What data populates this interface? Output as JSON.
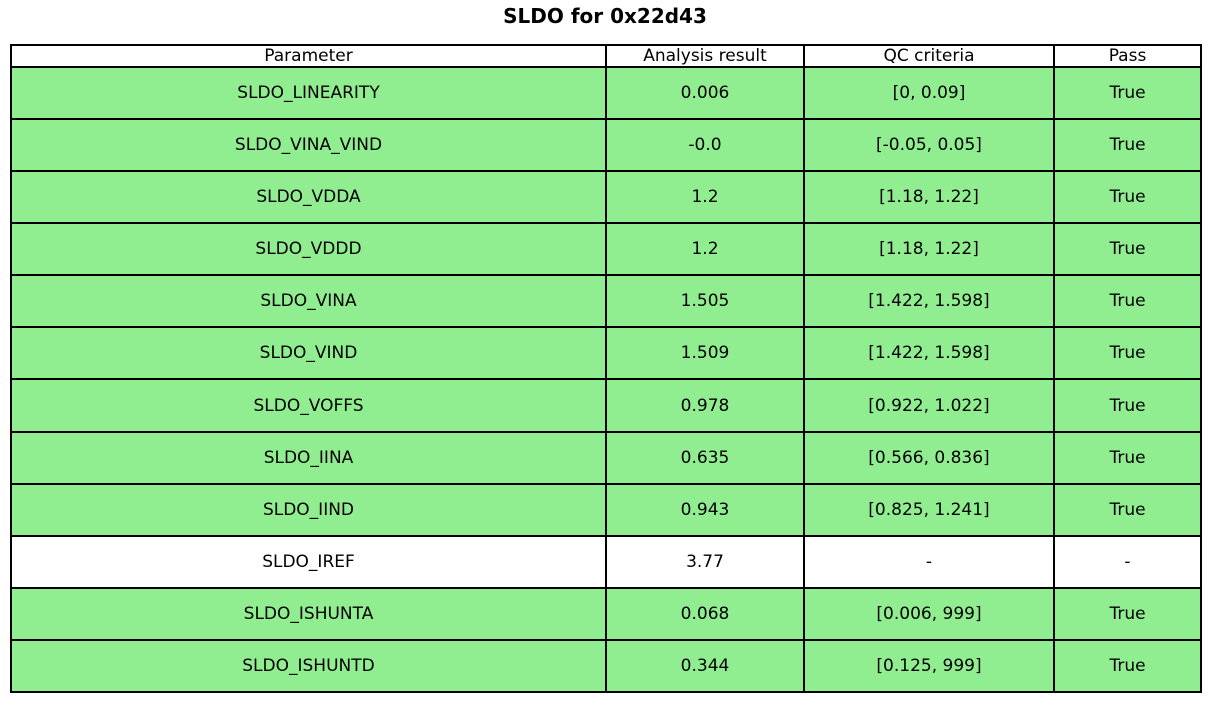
{
  "title": "SLDO for 0x22d43",
  "chart_data": {
    "type": "table",
    "title": "SLDO for 0x22d43",
    "columns": [
      "Parameter",
      "Analysis result",
      "QC criteria",
      "Pass"
    ],
    "rows": [
      {
        "parameter": "SLDO_LINEARITY",
        "analysis_result": "0.006",
        "qc_criteria": "[0, 0.09]",
        "pass": "True",
        "highlighted": true
      },
      {
        "parameter": "SLDO_VINA_VIND",
        "analysis_result": "-0.0",
        "qc_criteria": "[-0.05, 0.05]",
        "pass": "True",
        "highlighted": true
      },
      {
        "parameter": "SLDO_VDDA",
        "analysis_result": "1.2",
        "qc_criteria": "[1.18, 1.22]",
        "pass": "True",
        "highlighted": true
      },
      {
        "parameter": "SLDO_VDDD",
        "analysis_result": "1.2",
        "qc_criteria": "[1.18, 1.22]",
        "pass": "True",
        "highlighted": true
      },
      {
        "parameter": "SLDO_VINA",
        "analysis_result": "1.505",
        "qc_criteria": "[1.422, 1.598]",
        "pass": "True",
        "highlighted": true
      },
      {
        "parameter": "SLDO_VIND",
        "analysis_result": "1.509",
        "qc_criteria": "[1.422, 1.598]",
        "pass": "True",
        "highlighted": true
      },
      {
        "parameter": "SLDO_VOFFS",
        "analysis_result": "0.978",
        "qc_criteria": "[0.922, 1.022]",
        "pass": "True",
        "highlighted": true
      },
      {
        "parameter": "SLDO_IINA",
        "analysis_result": "0.635",
        "qc_criteria": "[0.566, 0.836]",
        "pass": "True",
        "highlighted": true
      },
      {
        "parameter": "SLDO_IIND",
        "analysis_result": "0.943",
        "qc_criteria": "[0.825, 1.241]",
        "pass": "True",
        "highlighted": true
      },
      {
        "parameter": "SLDO_IREF",
        "analysis_result": "3.77",
        "qc_criteria": "-",
        "pass": "-",
        "highlighted": false
      },
      {
        "parameter": "SLDO_ISHUNTA",
        "analysis_result": "0.068",
        "qc_criteria": "[0.006, 999]",
        "pass": "True",
        "highlighted": true
      },
      {
        "parameter": "SLDO_ISHUNTD",
        "analysis_result": "0.344",
        "qc_criteria": "[0.125, 999]",
        "pass": "True",
        "highlighted": true
      }
    ],
    "layout": {
      "highlight_color": "#90ee90",
      "plain_color": "#ffffff",
      "border_color": "#000000",
      "grid": true
    }
  }
}
